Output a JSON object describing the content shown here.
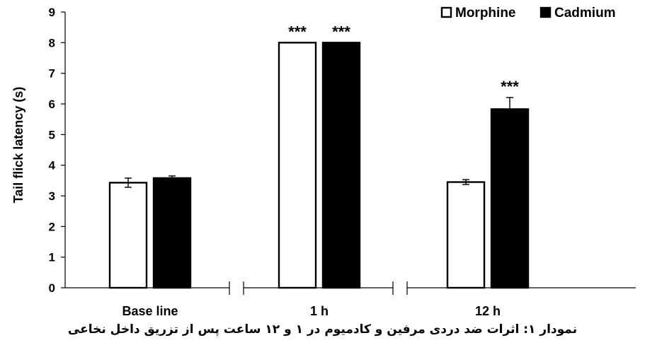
{
  "chart_data": {
    "type": "bar",
    "categories": [
      "Base line",
      "1 h",
      "12 h"
    ],
    "series": [
      {
        "name": "Morphine",
        "values": [
          3.43,
          8.0,
          3.45
        ],
        "errors": [
          0.15,
          0.0,
          0.08
        ],
        "significance": [
          "",
          "***",
          ""
        ]
      },
      {
        "name": "Cadmium",
        "values": [
          3.58,
          8.0,
          5.83
        ],
        "errors": [
          0.07,
          0.0,
          0.38
        ],
        "significance": [
          "",
          "***",
          "***"
        ]
      }
    ],
    "ylabel": "Tail flick latency (s)",
    "xlabel": "",
    "ylim": [
      0,
      9
    ],
    "yticks": [
      "0",
      "1",
      "2",
      "3",
      "4",
      "5",
      "6",
      "7",
      "8",
      "9"
    ],
    "legend_position": "top-right",
    "axis_breaks": true,
    "colors": {
      "Morphine": "#ffffff",
      "Cadmium": "#000000",
      "outline": "#000000"
    }
  },
  "caption": "نمودار ۱: اثرات ضد دردی مرفین و کادمیوم در ۱ و ۱۲ ساعت پس از تزریق داخل نخاعی"
}
